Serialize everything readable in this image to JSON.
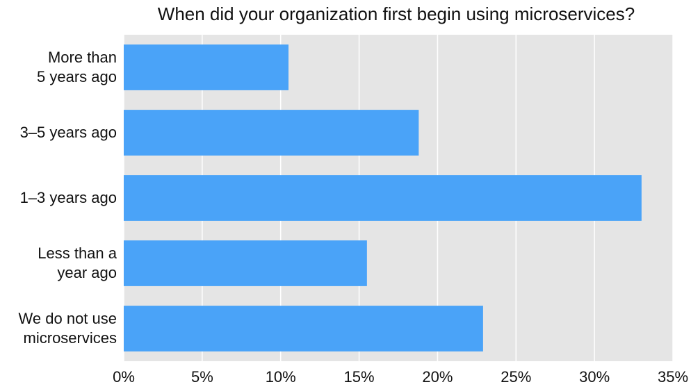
{
  "chart_data": {
    "type": "bar",
    "orientation": "horizontal",
    "title": "When did your organization first begin using microservices?",
    "categories": [
      "More than\n5 years ago",
      "3–5 years ago",
      "1–3 years ago",
      "Less than a\nyear ago",
      "We do not use\nmicroservices"
    ],
    "values": [
      10.5,
      18.8,
      33.0,
      15.5,
      22.9
    ],
    "color": "#4aa3f8",
    "xlim": [
      0,
      35
    ],
    "xticks": [
      {
        "value": 0,
        "label": "0%"
      },
      {
        "value": 5,
        "label": "5%"
      },
      {
        "value": 10,
        "label": "10%"
      },
      {
        "value": 15,
        "label": "15%"
      },
      {
        "value": 20,
        "label": "20%"
      },
      {
        "value": 25,
        "label": "25%"
      },
      {
        "value": 30,
        "label": "30%"
      },
      {
        "value": 35,
        "label": "35%"
      }
    ],
    "grid": true
  }
}
